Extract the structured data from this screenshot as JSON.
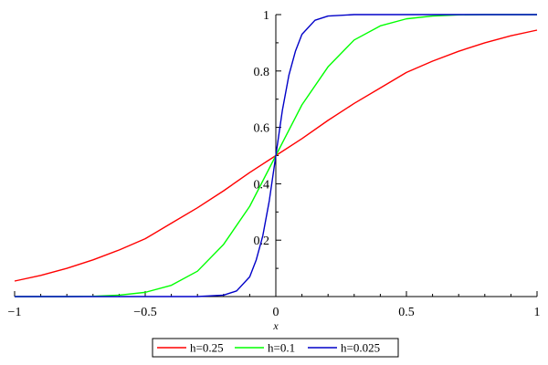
{
  "chart_data": {
    "type": "line",
    "title": "",
    "xlabel": "x",
    "ylabel": "",
    "xlim": [
      -1,
      1
    ],
    "ylim": [
      0,
      1
    ],
    "x_ticks": [
      -1,
      -0.5,
      0,
      0.5,
      1
    ],
    "x_tick_labels": [
      "−1",
      "−0.5",
      "0",
      "0.5",
      "1"
    ],
    "y_ticks": [
      0.2,
      0.4,
      0.6,
      0.8,
      1
    ],
    "y_tick_labels": [
      "0.2",
      "0.4",
      "0.6",
      "0.8",
      "1"
    ],
    "grid": false,
    "legend_position": "bottom",
    "series": [
      {
        "name": "h=0.25",
        "color": "#ff0000",
        "x": [
          -1,
          -0.9,
          -0.8,
          -0.7,
          -0.6,
          -0.5,
          -0.4,
          -0.3,
          -0.2,
          -0.1,
          0,
          0.1,
          0.2,
          0.3,
          0.4,
          0.5,
          0.6,
          0.7,
          0.8,
          0.9,
          1
        ],
        "y": [
          0.055,
          0.075,
          0.1,
          0.13,
          0.165,
          0.205,
          0.26,
          0.315,
          0.375,
          0.44,
          0.5,
          0.56,
          0.625,
          0.685,
          0.74,
          0.795,
          0.835,
          0.87,
          0.9,
          0.925,
          0.945
        ]
      },
      {
        "name": "h=0.1",
        "color": "#00ff00",
        "x": [
          -1,
          -0.9,
          -0.8,
          -0.7,
          -0.6,
          -0.5,
          -0.4,
          -0.3,
          -0.2,
          -0.1,
          0,
          0.1,
          0.2,
          0.3,
          0.4,
          0.5,
          0.6,
          0.7,
          0.8,
          0.9,
          1
        ],
        "y": [
          0.0,
          0.0,
          0.0,
          0.001,
          0.005,
          0.015,
          0.04,
          0.09,
          0.185,
          0.32,
          0.5,
          0.68,
          0.815,
          0.91,
          0.96,
          0.985,
          0.995,
          0.999,
          1.0,
          1.0,
          1.0
        ]
      },
      {
        "name": "h=0.025",
        "color": "#0000c8",
        "x": [
          -1,
          -0.5,
          -0.3,
          -0.2,
          -0.15,
          -0.1,
          -0.075,
          -0.05,
          -0.025,
          0,
          0.025,
          0.05,
          0.075,
          0.1,
          0.15,
          0.2,
          0.3,
          0.5,
          1
        ],
        "y": [
          0.0,
          0.0,
          0.0,
          0.005,
          0.02,
          0.07,
          0.13,
          0.215,
          0.34,
          0.5,
          0.66,
          0.785,
          0.87,
          0.93,
          0.98,
          0.995,
          1.0,
          1.0,
          1.0
        ]
      }
    ]
  }
}
